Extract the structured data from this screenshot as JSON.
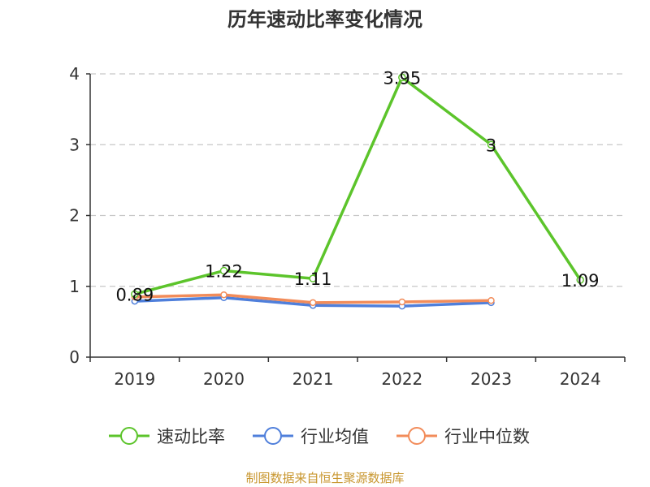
{
  "chart_data": {
    "type": "line",
    "title": "历年速动比率变化情况",
    "categories": [
      "2019",
      "2020",
      "2021",
      "2022",
      "2023",
      "2024"
    ],
    "ylim": [
      0,
      4
    ],
    "yticks": [
      "0",
      "1",
      "2",
      "3",
      "4"
    ],
    "grid": true,
    "legend_position": "bottom",
    "series": [
      {
        "name": "速动比率",
        "color": "#5cc42b",
        "values": [
          0.89,
          1.22,
          1.11,
          3.95,
          3,
          1.09
        ],
        "labels": [
          "0.89",
          "1.22",
          "1.11",
          "3.95",
          "3",
          "1.09"
        ]
      },
      {
        "name": "行业均值",
        "color": "#4f7fdb",
        "values": [
          0.79,
          0.84,
          0.73,
          0.72,
          0.77,
          null
        ]
      },
      {
        "name": "行业中位数",
        "color": "#f28c5a",
        "values": [
          0.85,
          0.88,
          0.77,
          0.78,
          0.8,
          null
        ]
      }
    ],
    "source": "制图数据来自恒生聚源数据库"
  }
}
